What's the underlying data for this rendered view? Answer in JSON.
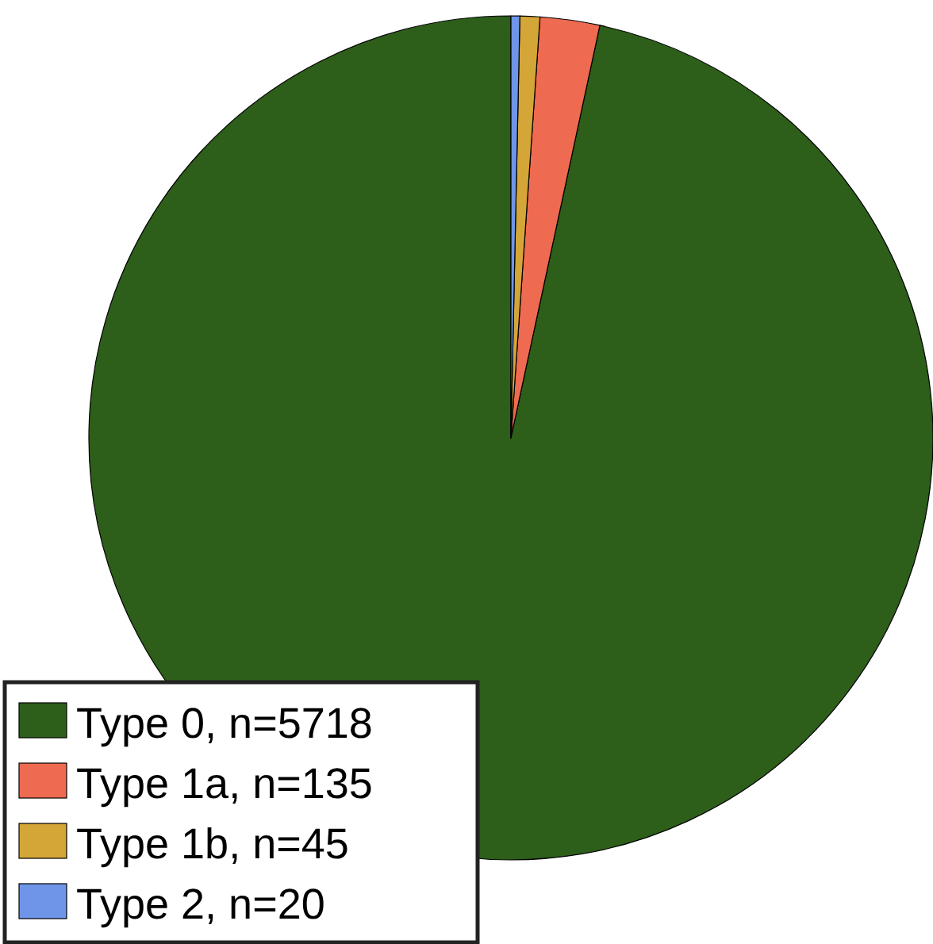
{
  "chart_data": {
    "type": "pie",
    "categories": [
      "Type 0, n=5718",
      "Type 1a, n=135",
      "Type 1b, n=45",
      "Type 2, n=20"
    ],
    "values": [
      5718,
      135,
      45,
      20
    ],
    "colors": [
      "#2d5e1a",
      "#ee6a50",
      "#d4a537",
      "#6f95e8"
    ],
    "legend": "bottom left"
  }
}
